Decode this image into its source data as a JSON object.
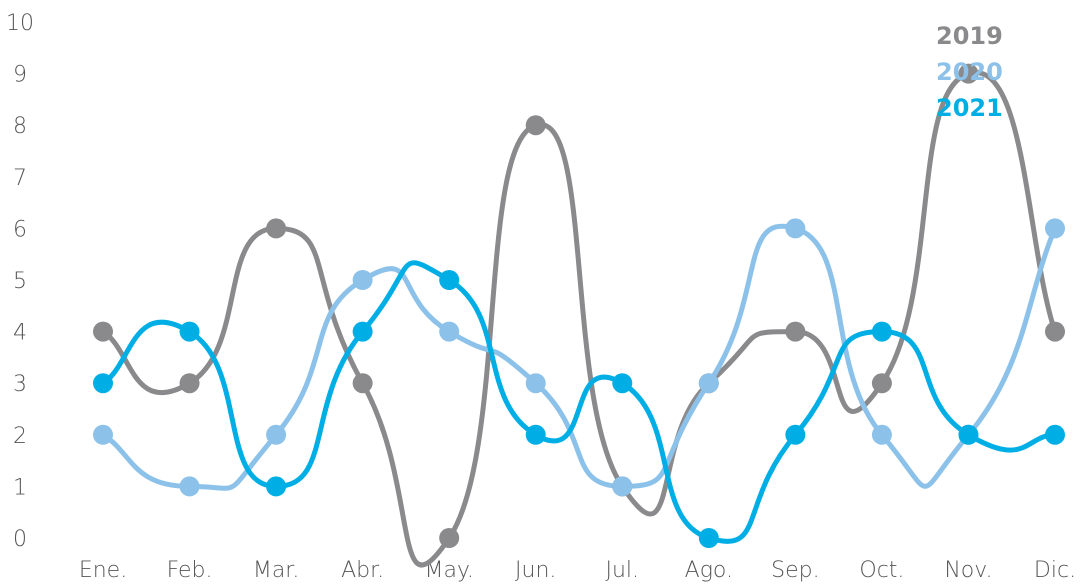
{
  "chart_data": {
    "type": "line",
    "smooth": true,
    "categories": [
      "Ene.",
      "Feb.",
      "Mar.",
      "Abr.",
      "May.",
      "Jun.",
      "Jul.",
      "Ago.",
      "Sep.",
      "Oct.",
      "Nov.",
      "Dic."
    ],
    "ylim": [
      0,
      10
    ],
    "yticks": [
      0,
      1,
      2,
      3,
      4,
      5,
      6,
      7,
      8,
      9,
      10
    ],
    "grid": false,
    "legend_position": "top-right",
    "series": [
      {
        "name": "2019",
        "color": "#8a8a8d",
        "values": [
          4,
          3,
          6,
          3,
          0,
          8,
          1,
          3,
          4,
          3,
          9,
          4
        ]
      },
      {
        "name": "2020",
        "color": "#8cc2ea",
        "values": [
          2,
          1,
          2,
          5,
          4,
          3,
          1,
          3,
          6,
          2,
          2,
          6
        ]
      },
      {
        "name": "2021",
        "color": "#00aee6",
        "values": [
          3,
          4,
          1,
          4,
          5,
          2,
          3,
          0,
          2,
          4,
          2,
          2
        ]
      }
    ]
  }
}
